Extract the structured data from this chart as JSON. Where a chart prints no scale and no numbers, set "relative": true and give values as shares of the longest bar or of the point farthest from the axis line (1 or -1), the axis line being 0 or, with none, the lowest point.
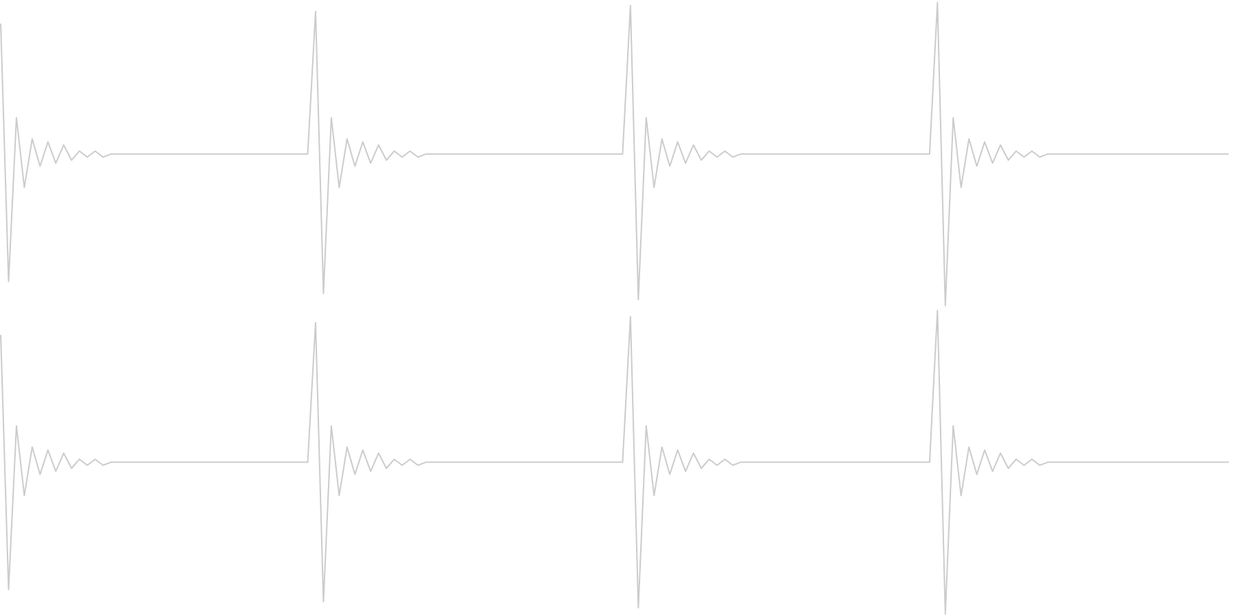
{
  "chart_data": [
    {
      "type": "line",
      "relative": true,
      "categories": [
        null,
        null,
        null,
        null,
        null,
        null,
        null,
        null,
        null,
        null,
        null,
        null,
        null,
        null,
        null,
        null,
        null,
        null,
        null,
        null,
        null,
        null,
        null,
        null,
        null,
        null,
        null,
        null,
        null,
        null,
        null,
        null,
        null,
        null,
        null,
        null,
        null,
        null,
        null,
        null,
        null,
        null,
        null,
        null,
        null,
        null,
        null,
        null,
        null,
        null,
        null,
        null,
        null,
        null,
        null,
        null,
        null,
        null,
        null,
        null,
        null,
        null,
        null,
        null,
        null,
        null,
        null,
        null,
        null,
        null,
        null,
        null,
        null,
        null,
        null,
        null,
        null,
        null,
        null,
        null,
        null,
        null,
        null,
        null,
        null,
        null,
        null,
        null,
        null,
        null,
        null,
        null,
        null,
        null,
        null,
        null,
        null,
        null,
        null,
        null,
        null,
        null,
        null,
        null,
        null,
        null,
        null,
        null,
        null,
        null,
        null,
        null,
        null,
        null,
        null,
        null,
        null,
        null,
        null,
        null,
        null,
        null,
        null,
        null,
        null,
        null,
        null,
        null,
        null,
        null,
        null,
        null,
        null,
        null,
        null,
        null,
        null,
        null,
        null,
        null,
        null,
        null,
        null,
        null,
        null,
        null,
        null,
        null,
        null,
        null,
        null,
        null,
        null,
        null,
        null,
        null,
        null
      ],
      "series": [
        {
          "color": "#cccccc",
          "values": [
            0.93,
            0.08,
            0.62,
            0.39,
            0.55,
            0.46,
            0.54,
            0.47,
            0.53,
            0.48,
            0.51,
            0.49,
            0.51,
            0.49,
            0.5,
            0.5,
            0.5,
            0.5,
            0.5,
            0.5,
            0.5,
            0.5,
            0.5,
            0.5,
            0.5,
            0.5,
            0.5,
            0.5,
            0.5,
            0.5,
            0.5,
            0.5,
            0.5,
            0.5,
            0.5,
            0.5,
            0.5,
            0.5,
            0.5,
            0.5,
            0.97,
            0.04,
            0.62,
            0.39,
            0.55,
            0.46,
            0.54,
            0.47,
            0.53,
            0.48,
            0.51,
            0.49,
            0.51,
            0.49,
            0.5,
            0.5,
            0.5,
            0.5,
            0.5,
            0.5,
            0.5,
            0.5,
            0.5,
            0.5,
            0.5,
            0.5,
            0.5,
            0.5,
            0.5,
            0.5,
            0.5,
            0.5,
            0.5,
            0.5,
            0.5,
            0.5,
            0.5,
            0.5,
            0.5,
            0.5,
            0.99,
            0.02,
            0.62,
            0.39,
            0.55,
            0.46,
            0.54,
            0.47,
            0.53,
            0.48,
            0.51,
            0.49,
            0.51,
            0.49,
            0.5,
            0.5,
            0.5,
            0.5,
            0.5,
            0.5,
            0.5,
            0.5,
            0.5,
            0.5,
            0.5,
            0.5,
            0.5,
            0.5,
            0.5,
            0.5,
            0.5,
            0.5,
            0.5,
            0.5,
            0.5,
            0.5,
            0.5,
            0.5,
            0.5,
            1,
            0,
            0.62,
            0.39,
            0.55,
            0.46,
            0.54,
            0.47,
            0.53,
            0.48,
            0.51,
            0.49,
            0.51,
            0.49,
            0.5,
            0.5,
            0.5,
            0.5,
            0.5,
            0.5,
            0.5,
            0.5,
            0.5,
            0.5,
            0.5,
            0.5,
            0.5,
            0.5,
            0.5,
            0.5,
            0.5,
            0.5,
            0.5,
            0.5,
            0.5,
            0.5,
            0.5,
            0.5
          ]
        }
      ]
    },
    {
      "type": "line",
      "relative": true,
      "categories": [
        null,
        null,
        null,
        null,
        null,
        null,
        null,
        null,
        null,
        null,
        null,
        null,
        null,
        null,
        null,
        null,
        null,
        null,
        null,
        null,
        null,
        null,
        null,
        null,
        null,
        null,
        null,
        null,
        null,
        null,
        null,
        null,
        null,
        null,
        null,
        null,
        null,
        null,
        null,
        null,
        null,
        null,
        null,
        null,
        null,
        null,
        null,
        null,
        null,
        null,
        null,
        null,
        null,
        null,
        null,
        null,
        null,
        null,
        null,
        null,
        null,
        null,
        null,
        null,
        null,
        null,
        null,
        null,
        null,
        null,
        null,
        null,
        null,
        null,
        null,
        null,
        null,
        null,
        null,
        null,
        null,
        null,
        null,
        null,
        null,
        null,
        null,
        null,
        null,
        null,
        null,
        null,
        null,
        null,
        null,
        null,
        null,
        null,
        null,
        null,
        null,
        null,
        null,
        null,
        null,
        null,
        null,
        null,
        null,
        null,
        null,
        null,
        null,
        null,
        null,
        null,
        null,
        null,
        null,
        null,
        null,
        null,
        null,
        null,
        null,
        null,
        null,
        null,
        null,
        null,
        null,
        null,
        null,
        null,
        null,
        null,
        null,
        null,
        null,
        null,
        null,
        null,
        null,
        null,
        null,
        null,
        null,
        null,
        null,
        null,
        null,
        null,
        null,
        null,
        null,
        null,
        null
      ],
      "series": [
        {
          "color": "#cccccc",
          "values": [
            0.92,
            0.08,
            0.62,
            0.39,
            0.55,
            0.46,
            0.54,
            0.47,
            0.53,
            0.48,
            0.51,
            0.49,
            0.51,
            0.49,
            0.5,
            0.5,
            0.5,
            0.5,
            0.5,
            0.5,
            0.5,
            0.5,
            0.5,
            0.5,
            0.5,
            0.5,
            0.5,
            0.5,
            0.5,
            0.5,
            0.5,
            0.5,
            0.5,
            0.5,
            0.5,
            0.5,
            0.5,
            0.5,
            0.5,
            0.5,
            0.96,
            0.04,
            0.62,
            0.39,
            0.55,
            0.46,
            0.54,
            0.47,
            0.53,
            0.48,
            0.51,
            0.49,
            0.51,
            0.49,
            0.5,
            0.5,
            0.5,
            0.5,
            0.5,
            0.5,
            0.5,
            0.5,
            0.5,
            0.5,
            0.5,
            0.5,
            0.5,
            0.5,
            0.5,
            0.5,
            0.5,
            0.5,
            0.5,
            0.5,
            0.5,
            0.5,
            0.5,
            0.5,
            0.5,
            0.5,
            0.98,
            0.02,
            0.62,
            0.39,
            0.55,
            0.46,
            0.54,
            0.47,
            0.53,
            0.48,
            0.51,
            0.49,
            0.51,
            0.49,
            0.5,
            0.5,
            0.5,
            0.5,
            0.5,
            0.5,
            0.5,
            0.5,
            0.5,
            0.5,
            0.5,
            0.5,
            0.5,
            0.5,
            0.5,
            0.5,
            0.5,
            0.5,
            0.5,
            0.5,
            0.5,
            0.5,
            0.5,
            0.5,
            0.5,
            1,
            0,
            0.62,
            0.39,
            0.55,
            0.46,
            0.54,
            0.47,
            0.53,
            0.48,
            0.51,
            0.49,
            0.51,
            0.49,
            0.5,
            0.5,
            0.5,
            0.5,
            0.5,
            0.5,
            0.5,
            0.5,
            0.5,
            0.5,
            0.5,
            0.5,
            0.5,
            0.5,
            0.5,
            0.5,
            0.5,
            0.5,
            0.5,
            0.5,
            0.5,
            0.5,
            0.5,
            0.5
          ]
        }
      ]
    }
  ]
}
